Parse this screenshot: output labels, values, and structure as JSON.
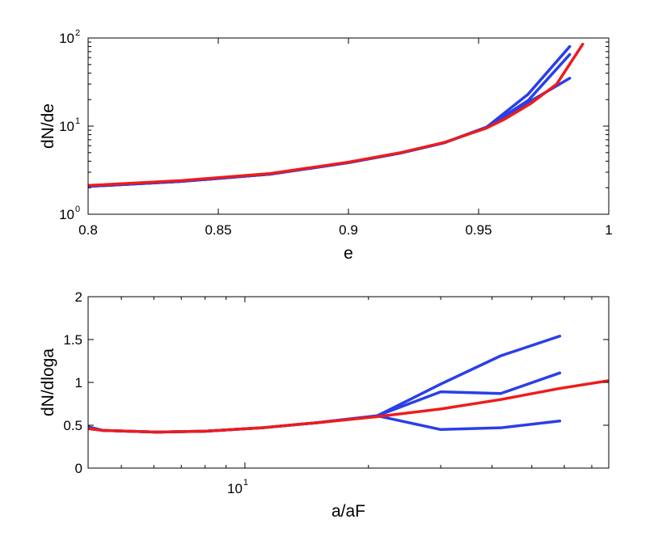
{
  "chart_data": [
    {
      "type": "line",
      "xlabel": "e",
      "ylabel": "dN/de",
      "xscale": "linear",
      "yscale": "log",
      "xlim": [
        0.8,
        1.0
      ],
      "ylim": [
        1,
        100
      ],
      "xticks": [
        0.8,
        0.85,
        0.9,
        0.95,
        1.0
      ],
      "xticklabels": [
        "0.8",
        "0.85",
        "0.9",
        "0.95",
        "1"
      ],
      "yticks": [
        {
          "base": "10",
          "exp": "0",
          "value": 1
        },
        {
          "base": "10",
          "exp": "1",
          "value": 10
        },
        {
          "base": "10",
          "exp": "2",
          "value": 100
        }
      ],
      "grid": false,
      "series": [
        {
          "color": "#2a3fe8",
          "x": [
            0.8,
            0.835,
            0.87,
            0.9,
            0.92,
            0.937,
            0.953,
            0.969,
            0.985
          ],
          "y": [
            2.07,
            2.35,
            2.85,
            3.85,
            4.95,
            6.5,
            9.7,
            23.0,
            80.0
          ]
        },
        {
          "color": "#2a3fe8",
          "x": [
            0.8,
            0.835,
            0.87,
            0.9,
            0.92,
            0.937,
            0.953,
            0.969,
            0.985
          ],
          "y": [
            2.07,
            2.35,
            2.85,
            3.85,
            4.95,
            6.5,
            9.7,
            19.5,
            65.0
          ]
        },
        {
          "color": "#2a3fe8",
          "x": [
            0.8,
            0.835,
            0.87,
            0.9,
            0.92,
            0.937,
            0.953,
            0.969,
            0.985
          ],
          "y": [
            2.07,
            2.35,
            2.85,
            3.85,
            4.95,
            6.5,
            9.7,
            18.5,
            35.0
          ]
        },
        {
          "color": "#ee1c1c",
          "x": [
            0.8,
            0.835,
            0.87,
            0.9,
            0.92,
            0.937,
            0.953,
            0.96,
            0.97,
            0.98,
            0.99
          ],
          "y": [
            2.12,
            2.4,
            2.9,
            3.9,
            5.0,
            6.55,
            9.5,
            12.0,
            18.0,
            30.0,
            85.0
          ]
        }
      ]
    },
    {
      "type": "line",
      "xlabel": "a/aF",
      "ylabel": "dN/dloga",
      "xscale": "log",
      "yscale": "linear",
      "xlim": [
        4.15,
        77.0
      ],
      "ylim": [
        0,
        2
      ],
      "xticks": [
        {
          "base": "10",
          "exp": "1",
          "value": 10
        }
      ],
      "yticks": [
        0,
        0.5,
        1,
        1.5,
        2
      ],
      "yticklabels": [
        "0",
        "0.5",
        "1",
        "1.5",
        "2"
      ],
      "grid": false,
      "series": [
        {
          "color": "#2a3fe8",
          "x": [
            4.15,
            4.5,
            6.1,
            8.0,
            11.0,
            15.0,
            21.0,
            30.0,
            42.0,
            58.5
          ],
          "y": [
            0.48,
            0.44,
            0.42,
            0.43,
            0.47,
            0.53,
            0.61,
            0.98,
            1.31,
            1.54
          ]
        },
        {
          "color": "#2a3fe8",
          "x": [
            4.15,
            4.5,
            6.1,
            8.0,
            11.0,
            15.0,
            21.0,
            30.0,
            42.0,
            58.5
          ],
          "y": [
            0.48,
            0.44,
            0.42,
            0.43,
            0.47,
            0.53,
            0.61,
            0.89,
            0.87,
            1.11
          ]
        },
        {
          "color": "#2a3fe8",
          "x": [
            4.15,
            4.5,
            6.1,
            8.0,
            11.0,
            15.0,
            21.0,
            30.0,
            42.0,
            58.5
          ],
          "y": [
            0.48,
            0.44,
            0.42,
            0.43,
            0.47,
            0.53,
            0.61,
            0.45,
            0.47,
            0.55
          ]
        },
        {
          "color": "#ee1c1c",
          "x": [
            4.15,
            4.5,
            6.1,
            8.0,
            11.0,
            15.0,
            21.0,
            30.0,
            42.0,
            58.5,
            77.0
          ],
          "y": [
            0.46,
            0.44,
            0.42,
            0.43,
            0.47,
            0.53,
            0.6,
            0.69,
            0.8,
            0.93,
            1.02
          ]
        }
      ]
    }
  ]
}
